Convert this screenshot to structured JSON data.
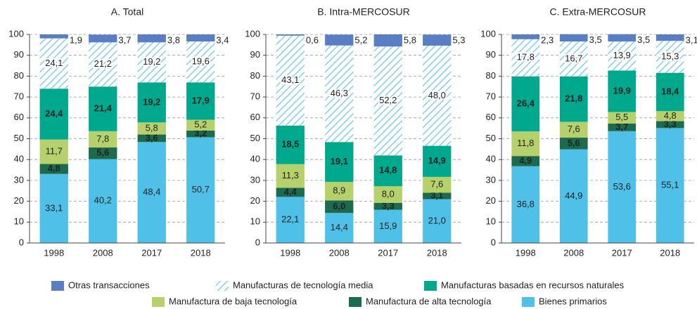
{
  "chart_data": [
    {
      "type": "bar",
      "stacked": true,
      "title": "A. Total",
      "categories": [
        "1998",
        "2008",
        "2017",
        "2018"
      ],
      "ylim": [
        0,
        100
      ],
      "yticks": [
        0,
        10,
        20,
        30,
        40,
        50,
        60,
        70,
        80,
        90,
        100
      ],
      "grid": true,
      "series": [
        {
          "name": "Bienes primarios",
          "color": "#4fc1e9",
          "values": [
            33.1,
            40.2,
            48.4,
            50.7
          ],
          "value_labels": [
            "33,1",
            "40,2",
            "48,4",
            "50,7"
          ]
        },
        {
          "name": "Manufactura de alta tecnología",
          "color": "#1d6b4e",
          "values": [
            4.8,
            5.6,
            3.6,
            3.2
          ],
          "value_labels": [
            "4,8",
            "5,6",
            "3,6",
            "3,2"
          ]
        },
        {
          "name": "Manufactura de baja tecnología",
          "color": "#b6d16c",
          "values": [
            11.7,
            7.8,
            5.8,
            5.2
          ],
          "value_labels": [
            "11,7",
            "7,8",
            "5,8",
            "5,2"
          ]
        },
        {
          "name": "Manufacturas basadas en recursos naturales",
          "color": "#00a88e",
          "values": [
            24.4,
            21.4,
            19.2,
            17.9
          ],
          "value_labels": [
            "24,4",
            "21,4",
            "19,2",
            "17,9"
          ]
        },
        {
          "name": "Manufacturas de tecnología media",
          "color": "#6ec6ea",
          "pattern": "hatch",
          "values": [
            24.1,
            21.2,
            19.2,
            19.6
          ],
          "value_labels": [
            "24,1",
            "21,2",
            "19,2",
            "19,6"
          ]
        },
        {
          "name": "Otras transacciones",
          "color": "#5a7ec3",
          "values": [
            1.9,
            3.7,
            3.8,
            3.4
          ],
          "value_labels": [
            "1,9",
            "3,7",
            "3,8",
            "3,4"
          ]
        }
      ]
    },
    {
      "type": "bar",
      "stacked": true,
      "title": "B. Intra-MERCOSUR",
      "categories": [
        "1998",
        "2008",
        "2017",
        "2018"
      ],
      "ylim": [
        0,
        100
      ],
      "yticks": [
        0,
        10,
        20,
        30,
        40,
        50,
        60,
        70,
        80,
        90,
        100
      ],
      "grid": true,
      "series": [
        {
          "name": "Bienes primarios",
          "color": "#4fc1e9",
          "values": [
            22.1,
            14.4,
            15.9,
            21.0
          ],
          "value_labels": [
            "22,1",
            "14,4",
            "15,9",
            "21,0"
          ]
        },
        {
          "name": "Manufactura de alta tecnología",
          "color": "#1d6b4e",
          "values": [
            4.4,
            6.0,
            3.3,
            3.1
          ],
          "value_labels": [
            "4,4",
            "6,0",
            "3,3",
            "3,1"
          ]
        },
        {
          "name": "Manufactura de baja tecnología",
          "color": "#b6d16c",
          "values": [
            11.3,
            8.9,
            8.0,
            7.6
          ],
          "value_labels": [
            "11,3",
            "8,9",
            "8,0",
            "7,6"
          ]
        },
        {
          "name": "Manufacturas basadas en recursos naturales",
          "color": "#00a88e",
          "values": [
            18.5,
            19.1,
            14.8,
            14.9
          ],
          "value_labels": [
            "18,5",
            "19,1",
            "14,8",
            "14,9"
          ]
        },
        {
          "name": "Manufacturas de tecnología media",
          "color": "#6ec6ea",
          "pattern": "hatch",
          "values": [
            43.1,
            46.3,
            52.2,
            48.0
          ],
          "value_labels": [
            "43,1",
            "46,3",
            "52,2",
            "48,0"
          ]
        },
        {
          "name": "Otras transacciones",
          "color": "#5a7ec3",
          "values": [
            0.6,
            5.2,
            5.8,
            5.3
          ],
          "value_labels": [
            "0,6",
            "5,2",
            "5,8",
            "5,3"
          ]
        }
      ]
    },
    {
      "type": "bar",
      "stacked": true,
      "title": "C. Extra-MERCOSUR",
      "categories": [
        "1998",
        "2008",
        "2017",
        "2018"
      ],
      "ylim": [
        0,
        100
      ],
      "yticks": [
        0,
        10,
        20,
        30,
        40,
        50,
        60,
        70,
        80,
        90,
        100
      ],
      "grid": true,
      "series": [
        {
          "name": "Bienes primarios",
          "color": "#4fc1e9",
          "values": [
            36.8,
            44.9,
            53.6,
            55.1
          ],
          "value_labels": [
            "36,8",
            "44,9",
            "53,6",
            "55,1"
          ]
        },
        {
          "name": "Manufactura de alta tecnología",
          "color": "#1d6b4e",
          "values": [
            4.9,
            5.6,
            3.7,
            3.3
          ],
          "value_labels": [
            "4,9",
            "5,6",
            "3,7",
            "3,3"
          ]
        },
        {
          "name": "Manufactura de baja tecnología",
          "color": "#b6d16c",
          "values": [
            11.8,
            7.6,
            5.5,
            4.8
          ],
          "value_labels": [
            "11,8",
            "7,6",
            "5,5",
            "4,8"
          ]
        },
        {
          "name": "Manufacturas basadas en recursos naturales",
          "color": "#00a88e",
          "values": [
            26.4,
            21.8,
            19.9,
            18.4
          ],
          "value_labels": [
            "26,4",
            "21,8",
            "19,9",
            "18,4"
          ]
        },
        {
          "name": "Manufacturas de tecnología media",
          "color": "#6ec6ea",
          "pattern": "hatch",
          "values": [
            17.8,
            16.7,
            13.9,
            15.3
          ],
          "value_labels": [
            "17,8",
            "16,7",
            "13,9",
            "15,3"
          ]
        },
        {
          "name": "Otras transacciones",
          "color": "#5a7ec3",
          "values": [
            2.3,
            3.5,
            3.5,
            3.1
          ],
          "value_labels": [
            "2,3",
            "3,5",
            "3,5",
            "3,1"
          ]
        }
      ]
    }
  ]
}
